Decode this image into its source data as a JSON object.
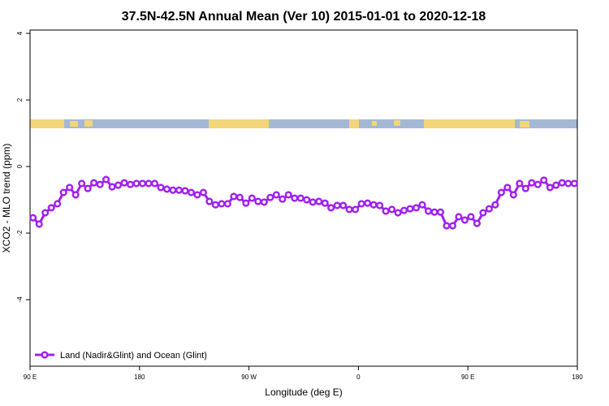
{
  "chart_data": {
    "type": "line",
    "title": "37.5N-42.5N Annual Mean (Ver 10)   2015-01-01 to 2020-12-18",
    "x_label": "Longitude (deg E)",
    "y_label": "XCO2 - MLO trend (ppm)",
    "xlim": [
      90,
      540
    ],
    "ylim": [
      -6,
      4.1
    ],
    "xticks": [
      {
        "value": 90,
        "label": "90 E"
      },
      180,
      {
        "value": 270,
        "label": "90 W"
      },
      {
        "value": 360,
        "label": "0"
      },
      {
        "value": 450,
        "label": "90 E"
      },
      {
        "value": 540,
        "label": "180"
      }
    ],
    "yticks": [
      -4,
      -2,
      0,
      2,
      4
    ],
    "grid": false,
    "legend_position": "bottom-left",
    "x": [
      92.5,
      97.5,
      102.5,
      107.5,
      112.5,
      117.5,
      122.5,
      127.5,
      132.5,
      137.5,
      142.5,
      147.5,
      152.5,
      157.5,
      162.5,
      167.5,
      172.5,
      177.5,
      182.5,
      187.5,
      192.5,
      197.5,
      202.5,
      207.5,
      212.5,
      217.5,
      222.5,
      227.5,
      232.5,
      237.5,
      242.5,
      247.5,
      252.5,
      257.5,
      262.5,
      267.5,
      272.5,
      277.5,
      282.5,
      287.5,
      292.5,
      297.5,
      302.5,
      307.5,
      312.5,
      317.5,
      322.5,
      327.5,
      332.5,
      337.5,
      342.5,
      347.5,
      352.5,
      357.5,
      362.5,
      367.5,
      372.5,
      377.5,
      382.5,
      387.5,
      392.5,
      397.5,
      402.5,
      407.5,
      412.5,
      417.5,
      422.5,
      427.5,
      432.5,
      437.5,
      442.5,
      447.5,
      452.5,
      457.5,
      462.5,
      467.5,
      472.5,
      477.5,
      482.5,
      487.5,
      492.5,
      497.5,
      502.5,
      507.5,
      512.5,
      517.5,
      522.5,
      527.5,
      532.5,
      537.5
    ],
    "series": [
      {
        "name": "Land (Nadir&Glint) and Ocean (Glint)",
        "color": "#a020f0",
        "values": [
          -1.54,
          -1.73,
          -1.39,
          -1.24,
          -1.12,
          -0.78,
          -0.63,
          -0.85,
          -0.51,
          -0.66,
          -0.49,
          -0.54,
          -0.39,
          -0.61,
          -0.56,
          -0.49,
          -0.54,
          -0.51,
          -0.51,
          -0.51,
          -0.51,
          -0.63,
          -0.68,
          -0.71,
          -0.71,
          -0.73,
          -0.78,
          -0.85,
          -0.78,
          -1.05,
          -1.15,
          -1.12,
          -1.12,
          -0.9,
          -0.93,
          -1.1,
          -0.95,
          -1.05,
          -1.07,
          -0.93,
          -0.85,
          -0.98,
          -0.85,
          -0.95,
          -0.95,
          -1.0,
          -1.07,
          -1.05,
          -1.1,
          -1.24,
          -1.17,
          -1.17,
          -1.29,
          -1.29,
          -1.12,
          -1.1,
          -1.15,
          -1.17,
          -1.34,
          -1.29,
          -1.39,
          -1.32,
          -1.27,
          -1.24,
          -1.15,
          -1.34,
          -1.37,
          -1.37,
          -1.78,
          -1.78,
          -1.51,
          -1.61,
          -1.51,
          -1.71,
          -1.39,
          -1.27,
          -1.15,
          -0.78,
          -0.63,
          -0.85,
          -0.51,
          -0.66,
          -0.49,
          -0.54,
          -0.41,
          -0.63,
          -0.56,
          -0.49,
          -0.51,
          -0.51
        ]
      }
    ]
  }
}
